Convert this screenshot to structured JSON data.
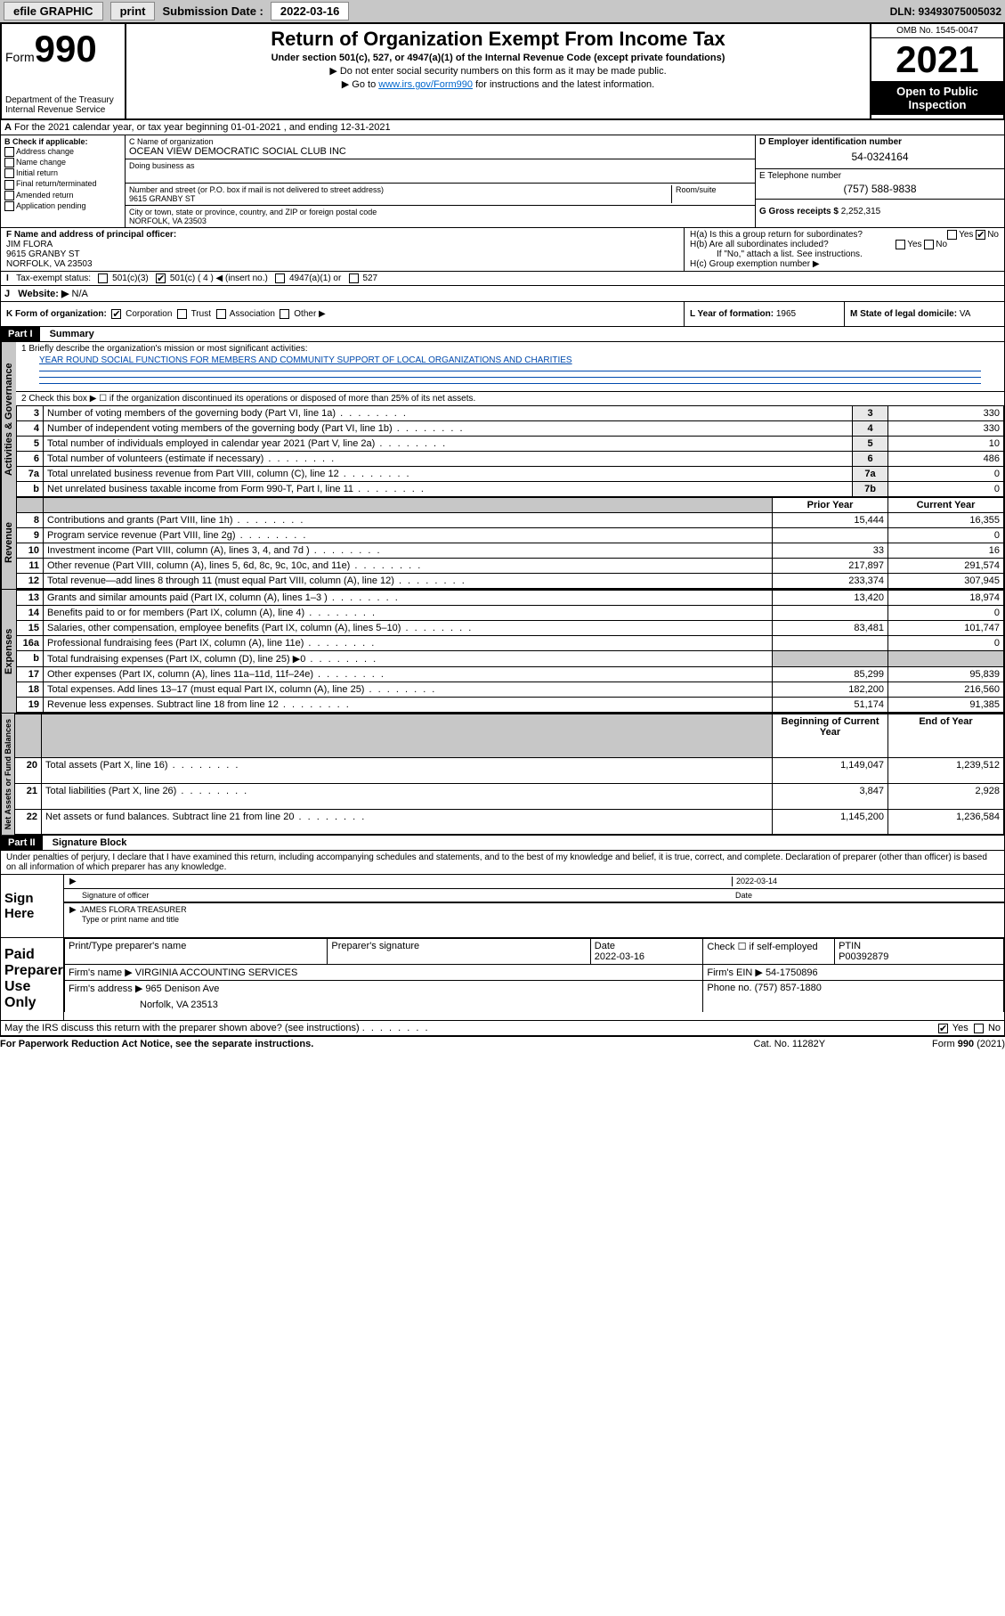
{
  "topbar": {
    "efile": "efile GRAPHIC",
    "print": "print",
    "sublabel": "Submission Date :",
    "subdate": "2022-03-16",
    "dln": "DLN: 93493075005032"
  },
  "header": {
    "formword": "Form",
    "formno": "990",
    "dept": "Department of the Treasury\nInternal Revenue Service",
    "title": "Return of Organization Exempt From Income Tax",
    "sub": "Under section 501(c), 527, or 4947(a)(1) of the Internal Revenue Code (except private foundations)",
    "note1": "▶ Do not enter social security numbers on this form as it may be made public.",
    "note2a": "▶ Go to ",
    "note2link": "www.irs.gov/Form990",
    "note2b": " for instructions and the latest information.",
    "omb": "OMB No. 1545-0047",
    "year": "2021",
    "otp": "Open to Public Inspection"
  },
  "A": "For the 2021 calendar year, or tax year beginning 01-01-2021   , and ending 12-31-2021",
  "B": {
    "label": "B Check if applicable:",
    "items": [
      "Address change",
      "Name change",
      "Initial return",
      "Final return/terminated",
      "Amended return",
      "Application pending"
    ]
  },
  "C": {
    "nameLabel": "C Name of organization",
    "name": "OCEAN VIEW DEMOCRATIC SOCIAL CLUB INC",
    "dba": "Doing business as",
    "streetLabel": "Number and street (or P.O. box if mail is not delivered to street address)",
    "street": "9615 GRANBY ST",
    "room": "Room/suite",
    "cityLabel": "City or town, state or province, country, and ZIP or foreign postal code",
    "city": "NORFOLK, VA  23503"
  },
  "D": {
    "label": "D Employer identification number",
    "val": "54-0324164"
  },
  "E": {
    "label": "E Telephone number",
    "val": "(757) 588-9838"
  },
  "G": {
    "label": "G Gross receipts $",
    "val": "2,252,315"
  },
  "F": {
    "label": "F  Name and address of principal officer:",
    "name": "JIM FLORA",
    "addr1": "9615 GRANBY ST",
    "addr2": "NORFOLK, VA  23503"
  },
  "H": {
    "a": "H(a)  Is this a group return for subordinates?",
    "b": "H(b)  Are all subordinates included?",
    "note": "If \"No,\" attach a list. See instructions.",
    "c": "H(c)  Group exemption number ▶",
    "yes": "Yes",
    "no": "No"
  },
  "I": {
    "label": "Tax-exempt status:",
    "c3": "501(c)(3)",
    "c": "501(c) ( 4 ) ◀ (insert no.)",
    "a1": "4947(a)(1) or",
    "p527": "527"
  },
  "J": {
    "label": "Website: ▶",
    "val": "N/A"
  },
  "K": {
    "label": "K Form of organization:",
    "corp": "Corporation",
    "trust": "Trust",
    "assoc": "Association",
    "other": "Other ▶"
  },
  "L": {
    "label": "L Year of formation:",
    "val": "1965"
  },
  "M": {
    "label": "M State of legal domicile:",
    "val": "VA"
  },
  "part1": {
    "title": "Part I",
    "sub": "Summary",
    "l1a": "1   Briefly describe the organization's mission or most significant activities:",
    "l1b": "YEAR ROUND SOCIAL FUNCTIONS FOR MEMBERS AND COMMUNITY SUPPORT OF LOCAL ORGANIZATIONS AND CHARITIES",
    "l2": "2   Check this box ▶ ☐  if the organization discontinued its operations or disposed of more than 25% of its net assets.",
    "rows_gov": [
      {
        "n": "3",
        "d": "Number of voting members of the governing body (Part VI, line 1a)",
        "k": "3",
        "v": "330"
      },
      {
        "n": "4",
        "d": "Number of independent voting members of the governing body (Part VI, line 1b)",
        "k": "4",
        "v": "330"
      },
      {
        "n": "5",
        "d": "Total number of individuals employed in calendar year 2021 (Part V, line 2a)",
        "k": "5",
        "v": "10"
      },
      {
        "n": "6",
        "d": "Total number of volunteers (estimate if necessary)",
        "k": "6",
        "v": "486"
      },
      {
        "n": "7a",
        "d": "Total unrelated business revenue from Part VIII, column (C), line 12",
        "k": "7a",
        "v": "0"
      },
      {
        "n": "b",
        "d": "Net unrelated business taxable income from Form 990-T, Part I, line 11",
        "k": "7b",
        "v": "0"
      }
    ],
    "colhdr": {
      "py": "Prior Year",
      "cy": "Current Year",
      "boc": "Beginning of Current Year",
      "eoy": "End of Year"
    },
    "rows_rev": [
      {
        "n": "8",
        "d": "Contributions and grants (Part VIII, line 1h)",
        "py": "15,444",
        "cy": "16,355"
      },
      {
        "n": "9",
        "d": "Program service revenue (Part VIII, line 2g)",
        "py": "",
        "cy": "0"
      },
      {
        "n": "10",
        "d": "Investment income (Part VIII, column (A), lines 3, 4, and 7d )",
        "py": "33",
        "cy": "16"
      },
      {
        "n": "11",
        "d": "Other revenue (Part VIII, column (A), lines 5, 6d, 8c, 9c, 10c, and 11e)",
        "py": "217,897",
        "cy": "291,574"
      },
      {
        "n": "12",
        "d": "Total revenue—add lines 8 through 11 (must equal Part VIII, column (A), line 12)",
        "py": "233,374",
        "cy": "307,945"
      }
    ],
    "rows_exp": [
      {
        "n": "13",
        "d": "Grants and similar amounts paid (Part IX, column (A), lines 1–3 )",
        "py": "13,420",
        "cy": "18,974"
      },
      {
        "n": "14",
        "d": "Benefits paid to or for members (Part IX, column (A), line 4)",
        "py": "",
        "cy": "0"
      },
      {
        "n": "15",
        "d": "Salaries, other compensation, employee benefits (Part IX, column (A), lines 5–10)",
        "py": "83,481",
        "cy": "101,747"
      },
      {
        "n": "16a",
        "d": "Professional fundraising fees (Part IX, column (A), line 11e)",
        "py": "",
        "cy": "0"
      },
      {
        "n": "b",
        "d": "Total fundraising expenses (Part IX, column (D), line 25) ▶0",
        "py": "shade",
        "cy": "shade"
      },
      {
        "n": "17",
        "d": "Other expenses (Part IX, column (A), lines 11a–11d, 11f–24e)",
        "py": "85,299",
        "cy": "95,839"
      },
      {
        "n": "18",
        "d": "Total expenses. Add lines 13–17 (must equal Part IX, column (A), line 25)",
        "py": "182,200",
        "cy": "216,560"
      },
      {
        "n": "19",
        "d": "Revenue less expenses. Subtract line 18 from line 12",
        "py": "51,174",
        "cy": "91,385"
      }
    ],
    "rows_net": [
      {
        "n": "20",
        "d": "Total assets (Part X, line 16)",
        "py": "1,149,047",
        "cy": "1,239,512"
      },
      {
        "n": "21",
        "d": "Total liabilities (Part X, line 26)",
        "py": "3,847",
        "cy": "2,928"
      },
      {
        "n": "22",
        "d": "Net assets or fund balances. Subtract line 21 from line 20",
        "py": "1,145,200",
        "cy": "1,236,584"
      }
    ],
    "side": {
      "gov": "Activities & Governance",
      "rev": "Revenue",
      "exp": "Expenses",
      "net": "Net Assets or Fund Balances"
    }
  },
  "part2": {
    "title": "Part II",
    "sub": "Signature Block",
    "decl": "Under penalties of perjury, I declare that I have examined this return, including accompanying schedules and statements, and to the best of my knowledge and belief, it is true, correct, and complete. Declaration of preparer (other than officer) is based on all information of which preparer has any knowledge.",
    "sign": {
      "label": "Sign Here",
      "sigoff": "Signature of officer",
      "date": "2022-03-14",
      "dateLabel": "Date",
      "name": "JAMES FLORA  TREASURER",
      "nameLabel": "Type or print name and title"
    },
    "paid": {
      "label": "Paid Preparer Use Only",
      "h1": "Print/Type preparer's name",
      "h2": "Preparer's signature",
      "h3": "Date",
      "h4": "Check ☐ if self-employed",
      "h5": "PTIN",
      "date": "2022-03-16",
      "ptin": "P00392879",
      "firmLabel": "Firm's name  ▶",
      "firm": "VIRGINIA ACCOUNTING SERVICES",
      "einLabel": "Firm's EIN ▶",
      "ein": "54-1750896",
      "addrLabel": "Firm's address ▶",
      "addr": "965 Denison Ave",
      "city": "Norfolk, VA  23513",
      "phoneLabel": "Phone no.",
      "phone": "(757) 857-1880"
    },
    "irsq": "May the IRS discuss this return with the preparer shown above? (see instructions)",
    "yes": "Yes",
    "no": "No"
  },
  "footer": {
    "l": "For Paperwork Reduction Act Notice, see the separate instructions.",
    "m": "Cat. No. 11282Y",
    "r": "Form 990 (2021)"
  }
}
